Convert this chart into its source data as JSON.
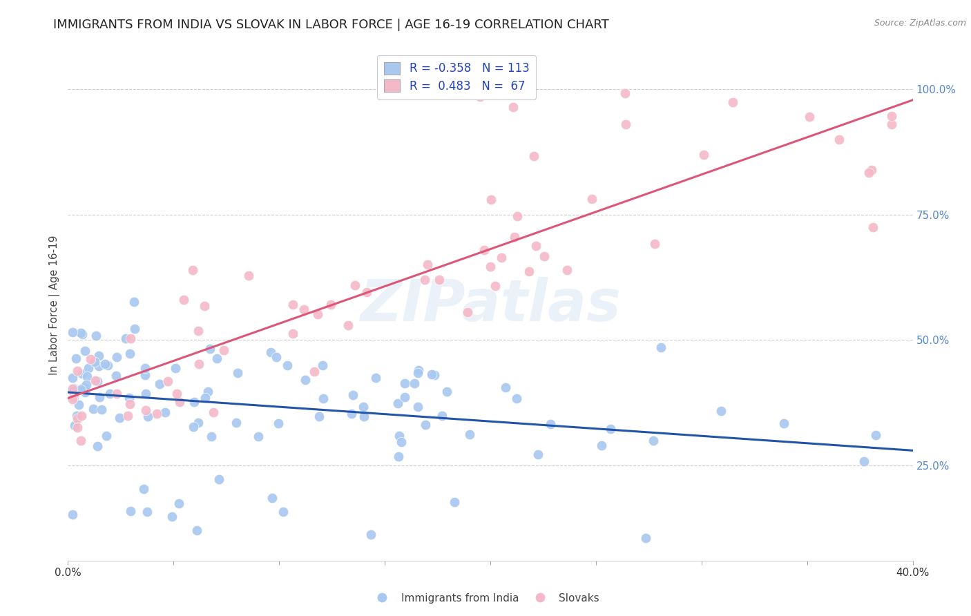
{
  "title": "IMMIGRANTS FROM INDIA VS SLOVAK IN LABOR FORCE | AGE 16-19 CORRELATION CHART",
  "source": "Source: ZipAtlas.com",
  "ylabel": "In Labor Force | Age 16-19",
  "ytick_values": [
    1.0,
    0.75,
    0.5,
    0.25
  ],
  "ytick_labels": [
    "100.0%",
    "75.0%",
    "50.0%",
    "25.0%"
  ],
  "xlim": [
    0.0,
    0.4
  ],
  "ylim": [
    0.06,
    1.08
  ],
  "blue_R": -0.358,
  "blue_N": 113,
  "pink_R": 0.483,
  "pink_N": 67,
  "blue_color": "#A8C8F0",
  "pink_color": "#F5B8C8",
  "blue_line_color": "#2255AA",
  "pink_line_color": "#DD5577",
  "background_color": "#FFFFFF",
  "grid_color": "#CCCCCC",
  "watermark_text": "ZIPatlas",
  "title_fontsize": 13,
  "legend_label_blue": "R = -0.358   N = 113",
  "legend_label_pink": "R =  0.483   N =  67",
  "bottom_label_blue": "Immigrants from India",
  "bottom_label_pink": "Slovaks",
  "blue_intercept": 0.425,
  "blue_slope": -0.42,
  "pink_intercept": 0.38,
  "pink_slope": 1.38
}
